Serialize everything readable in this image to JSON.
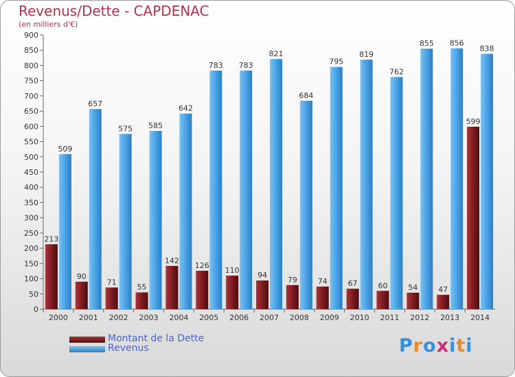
{
  "chart_data": {
    "type": "bar",
    "title": "Revenus/Dette - CAPDENAC",
    "subtitle": "(en milliers d'€)",
    "categories": [
      "2000",
      "2001",
      "2002",
      "2003",
      "2004",
      "2005",
      "2006",
      "2007",
      "2008",
      "2009",
      "2010",
      "2011",
      "2012",
      "2013",
      "2014"
    ],
    "series": [
      {
        "name": "Montant de la Dette",
        "color": "#7a1a1f",
        "values": [
          213,
          90,
          71,
          55,
          142,
          126,
          110,
          94,
          79,
          74,
          67,
          60,
          54,
          47,
          599
        ]
      },
      {
        "name": "Revenus",
        "color": "#3d9be3",
        "values": [
          509,
          657,
          575,
          585,
          642,
          783,
          783,
          821,
          684,
          795,
          819,
          762,
          855,
          856,
          838
        ]
      }
    ],
    "ylim": [
      0,
      900
    ],
    "yticks": [
      0,
      50,
      100,
      150,
      200,
      250,
      300,
      350,
      400,
      450,
      500,
      550,
      600,
      650,
      700,
      750,
      800,
      850,
      900
    ],
    "grid": false,
    "legend_position": "bottom-left"
  },
  "logo": {
    "text": "Proxiti",
    "colors": [
      "#3a8fd6",
      "#e98a2b",
      "#3a8fd6",
      "#c62f7a",
      "#3a8fd6",
      "#e98a2b",
      "#3a8fd6"
    ]
  }
}
